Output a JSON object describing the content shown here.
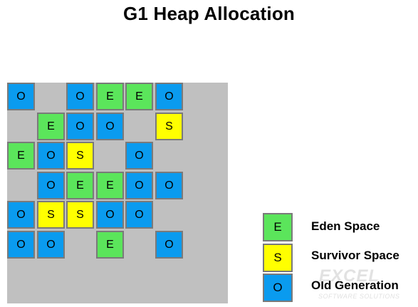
{
  "title": "G1 Heap Allocation",
  "colors": {
    "eden": "#5be55b",
    "survivor": "#ffff00",
    "old": "#0a9bef",
    "free": "#c0c0c0"
  },
  "regions": [
    {
      "row": 0,
      "col": 0,
      "type": "old",
      "label": "O"
    },
    {
      "row": 0,
      "col": 2,
      "type": "old",
      "label": "O"
    },
    {
      "row": 0,
      "col": 3,
      "type": "eden",
      "label": "E"
    },
    {
      "row": 0,
      "col": 4,
      "type": "eden",
      "label": "E"
    },
    {
      "row": 0,
      "col": 5,
      "type": "old",
      "label": "O"
    },
    {
      "row": 1,
      "col": 1,
      "type": "eden",
      "label": "E"
    },
    {
      "row": 1,
      "col": 2,
      "type": "old",
      "label": "O"
    },
    {
      "row": 1,
      "col": 3,
      "type": "old",
      "label": "O"
    },
    {
      "row": 1,
      "col": 5,
      "type": "survivor",
      "label": "S"
    },
    {
      "row": 2,
      "col": 0,
      "type": "eden",
      "label": "E"
    },
    {
      "row": 2,
      "col": 1,
      "type": "old",
      "label": "O"
    },
    {
      "row": 2,
      "col": 2,
      "type": "survivor",
      "label": "S"
    },
    {
      "row": 2,
      "col": 4,
      "type": "old",
      "label": "O"
    },
    {
      "row": 3,
      "col": 1,
      "type": "old",
      "label": "O"
    },
    {
      "row": 3,
      "col": 2,
      "type": "eden",
      "label": "E"
    },
    {
      "row": 3,
      "col": 3,
      "type": "eden",
      "label": "E"
    },
    {
      "row": 3,
      "col": 4,
      "type": "old",
      "label": "O"
    },
    {
      "row": 3,
      "col": 5,
      "type": "old",
      "label": "O"
    },
    {
      "row": 4,
      "col": 0,
      "type": "old",
      "label": "O"
    },
    {
      "row": 4,
      "col": 1,
      "type": "survivor",
      "label": "S"
    },
    {
      "row": 4,
      "col": 2,
      "type": "survivor",
      "label": "S"
    },
    {
      "row": 4,
      "col": 3,
      "type": "old",
      "label": "O"
    },
    {
      "row": 4,
      "col": 4,
      "type": "old",
      "label": "O"
    },
    {
      "row": 5,
      "col": 0,
      "type": "old",
      "label": "O"
    },
    {
      "row": 5,
      "col": 1,
      "type": "old",
      "label": "O"
    },
    {
      "row": 5,
      "col": 3,
      "type": "eden",
      "label": "E"
    },
    {
      "row": 5,
      "col": 5,
      "type": "old",
      "label": "O"
    }
  ],
  "legend": [
    {
      "type": "eden",
      "symbol": "E",
      "label": "Eden Space"
    },
    {
      "type": "survivor",
      "symbol": "S",
      "label": "Survivor Space"
    },
    {
      "type": "old",
      "symbol": "O",
      "label": "Old Generation"
    }
  ],
  "watermark": {
    "brand": "EXCEL",
    "tagline": "SOFTWARE SOLUTIONS"
  }
}
